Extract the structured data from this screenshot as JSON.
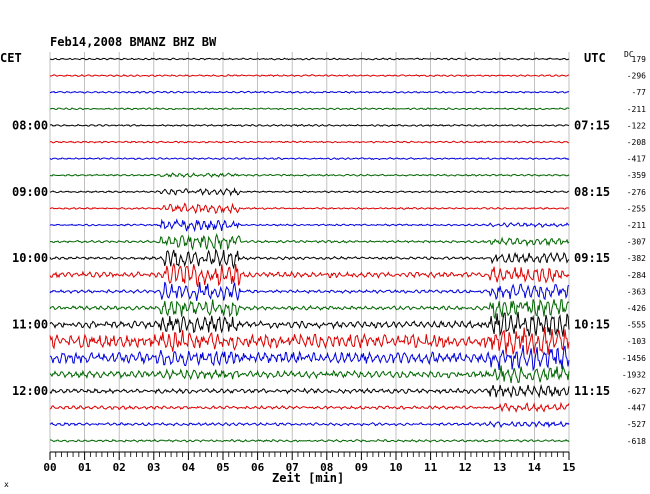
{
  "chart_data": {
    "type": "line",
    "title": "Feb14,2008   BMANZ BHZ BW",
    "left_timezone": "CET",
    "right_timezone": "UTC",
    "dc_header": "DC",
    "xlabel": "Zeit [min]",
    "xlim": [
      0,
      15
    ],
    "x_ticks": [
      "00",
      "01",
      "02",
      "03",
      "04",
      "05",
      "06",
      "07",
      "08",
      "09",
      "10",
      "11",
      "12",
      "13",
      "14",
      "15"
    ],
    "left_time_labels": [
      {
        "row": 4,
        "label": "08:00"
      },
      {
        "row": 8,
        "label": "09:00"
      },
      {
        "row": 12,
        "label": "10:00"
      },
      {
        "row": 16,
        "label": "11:00"
      },
      {
        "row": 20,
        "label": "12:00"
      }
    ],
    "right_time_labels": [
      {
        "row": 4,
        "label": "07:15"
      },
      {
        "row": 8,
        "label": "08:15"
      },
      {
        "row": 12,
        "label": "09:15"
      },
      {
        "row": 16,
        "label": "10:15"
      },
      {
        "row": 20,
        "label": "11:15"
      }
    ],
    "trace_colors": [
      "#000000",
      "#dd0000",
      "#0000dd",
      "#006600"
    ],
    "grid": true,
    "series": [
      {
        "dc": "179",
        "activity": 0.15,
        "color": "#000000"
      },
      {
        "dc": "-296",
        "activity": 0.15,
        "color": "#dd0000"
      },
      {
        "dc": "-77",
        "activity": 0.15,
        "color": "#0000dd"
      },
      {
        "dc": "-211",
        "activity": 0.15,
        "color": "#006600"
      },
      {
        "dc": "-122",
        "activity": 0.15,
        "color": "#000000"
      },
      {
        "dc": "-208",
        "activity": 0.15,
        "color": "#dd0000"
      },
      {
        "dc": "-417",
        "activity": 0.15,
        "color": "#0000dd"
      },
      {
        "dc": "-359",
        "activity": 0.15,
        "color": "#006600"
      },
      {
        "dc": "-276",
        "activity": 0.15,
        "color": "#000000"
      },
      {
        "dc": "-255",
        "activity": 0.15,
        "color": "#dd0000"
      },
      {
        "dc": "-211",
        "activity": 0.15,
        "color": "#0000dd"
      },
      {
        "dc": "-307",
        "activity": 0.2,
        "color": "#006600"
      },
      {
        "dc": "-382",
        "activity": 0.25,
        "color": "#000000"
      },
      {
        "dc": "-284",
        "activity": 0.5,
        "color": "#dd0000"
      },
      {
        "dc": "-363",
        "activity": 0.3,
        "color": "#0000dd"
      },
      {
        "dc": "-426",
        "activity": 0.35,
        "color": "#006600"
      },
      {
        "dc": "-555",
        "activity": 0.6,
        "color": "#000000"
      },
      {
        "dc": "-103",
        "activity": 1.2,
        "color": "#dd0000"
      },
      {
        "dc": "-1456",
        "activity": 1.0,
        "color": "#0000dd"
      },
      {
        "dc": "-1932",
        "activity": 0.6,
        "color": "#006600"
      },
      {
        "dc": "-627",
        "activity": 0.4,
        "color": "#000000"
      },
      {
        "dc": "-447",
        "activity": 0.3,
        "color": "#dd0000"
      },
      {
        "dc": "-527",
        "activity": 0.25,
        "color": "#0000dd"
      },
      {
        "dc": "-618",
        "activity": 0.2,
        "color": "#006600"
      }
    ],
    "events": [
      {
        "start_min": 3.5,
        "end_min": 5.5,
        "peak_row": 13
      },
      {
        "start_min": 13.0,
        "end_min": 15.0,
        "peak_row": 16
      }
    ]
  },
  "footer_mark": "x"
}
